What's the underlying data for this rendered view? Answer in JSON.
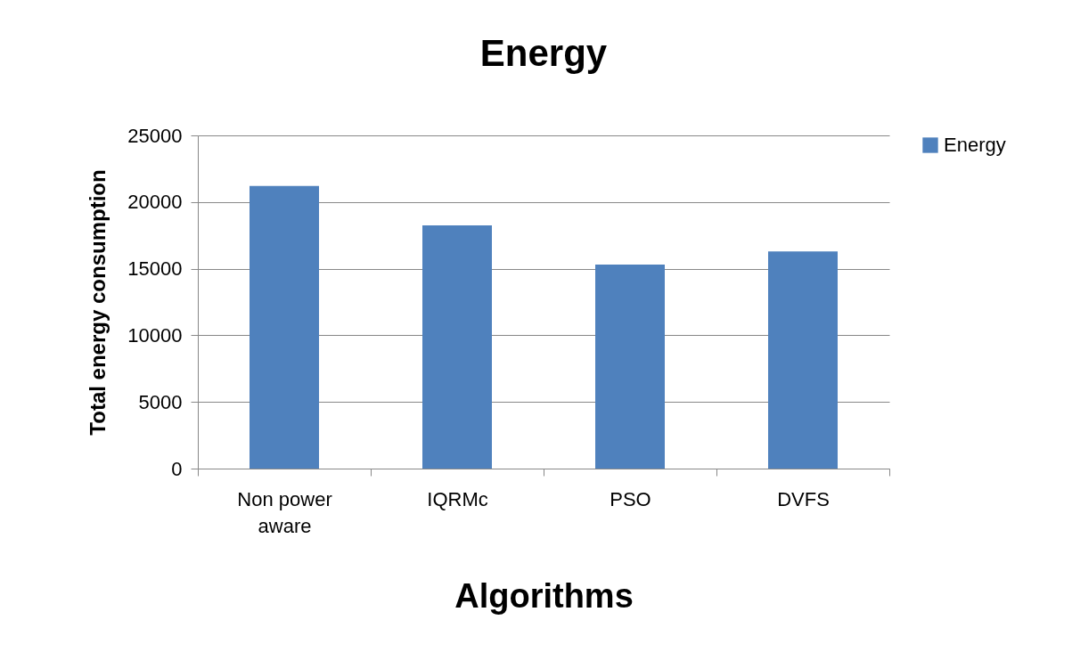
{
  "chart_data": {
    "type": "bar",
    "title": "Energy",
    "xlabel": "Algorithms",
    "ylabel": "Total energy consumption",
    "categories": [
      "Non power aware",
      "IQRMc",
      "PSO",
      "DVFS"
    ],
    "series": [
      {
        "name": "Energy",
        "color": "#4f81bd",
        "values": [
          21200,
          18250,
          15300,
          16300
        ]
      }
    ],
    "ylim": [
      0,
      25000
    ],
    "yticks": [
      0,
      5000,
      10000,
      15000,
      20000,
      25000
    ],
    "grid": "y",
    "legend": "right"
  }
}
